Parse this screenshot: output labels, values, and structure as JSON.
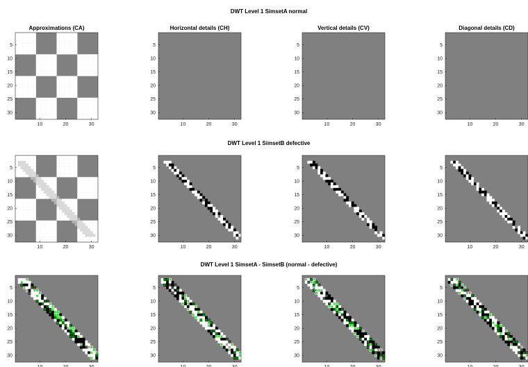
{
  "figure": {
    "row_titles": [
      "DWT Level 1 SimsetA normal",
      "DWT Level 1 SimsetB defective",
      "DWT Level 1 SimsetA - SimsetB (normal - defective)"
    ]
  },
  "chart_data": {
    "type": "heatmap",
    "colormap": "gray",
    "colors": {
      "gray": "#808080",
      "white": "#ffffff",
      "black": "#000000",
      "light": "#d9d9d9",
      "lightmid": "#b3b3b3",
      "green": "#00c000"
    },
    "x_ticks": [
      "10",
      "20",
      "30"
    ],
    "y_ticks": [
      "5",
      "10",
      "15",
      "20",
      "25",
      "30"
    ],
    "xlim": [
      0.5,
      32.5
    ],
    "ylim": [
      0.5,
      32.5
    ],
    "panels": [
      {
        "row": 0,
        "col": 0,
        "title": "Approximations (CA)",
        "content": "checker",
        "checker_block": 8
      },
      {
        "row": 0,
        "col": 1,
        "title": "Horizontal details (CH)",
        "content": "flat"
      },
      {
        "row": 0,
        "col": 2,
        "title": "Vertical details (CV)",
        "content": "flat"
      },
      {
        "row": 0,
        "col": 3,
        "title": "Diagonal details (CD)",
        "content": "flat"
      },
      {
        "row": 1,
        "col": 0,
        "title": "",
        "content": "checker_with_light_band",
        "checker_block": 8
      },
      {
        "row": 1,
        "col": 1,
        "title": "",
        "content": "diag_band",
        "seed": 11,
        "band_width": 3
      },
      {
        "row": 1,
        "col": 2,
        "title": "",
        "content": "diag_band",
        "seed": 23,
        "band_width": 3
      },
      {
        "row": 1,
        "col": 3,
        "title": "",
        "content": "diag_band",
        "seed": 37,
        "band_width": 3
      },
      {
        "row": 2,
        "col": 0,
        "title": "",
        "content": "diff_ca",
        "seed": 5,
        "band_width": 4
      },
      {
        "row": 2,
        "col": 1,
        "title": "",
        "content": "diff_band",
        "seed": 41,
        "band_width": 4
      },
      {
        "row": 2,
        "col": 2,
        "title": "",
        "content": "diff_band",
        "seed": 53,
        "band_width": 4
      },
      {
        "row": 2,
        "col": 3,
        "title": "",
        "content": "diff_band",
        "seed": 67,
        "band_width": 4
      }
    ]
  }
}
